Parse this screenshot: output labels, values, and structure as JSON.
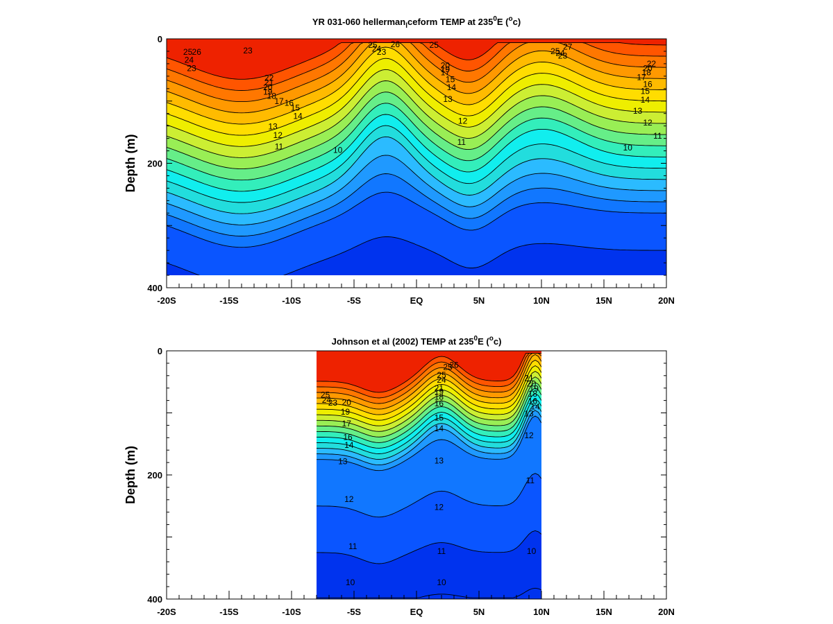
{
  "chart_data": [
    {
      "type": "heatmap",
      "subtype": "filled-contour-section",
      "title": "YR 031-060 hellerman_ceform TEMP at 235°E (°c)",
      "title_parts": {
        "pre": "YR 031-060 hellerman",
        "sub": "l",
        "mid": "ceform TEMP at 235",
        "sup1": "0",
        "post1": "E (",
        "sup2": "o",
        "post2": "c)"
      },
      "ylabel": "Depth (m)",
      "xlabel": "",
      "xlim": [
        -20,
        20
      ],
      "ylim": [
        400,
        0
      ],
      "y_inverted": true,
      "data_depth_max": 380,
      "data_lat_range": [
        -20,
        20
      ],
      "xticks": [
        -20,
        -15,
        -10,
        -5,
        0,
        5,
        10,
        15,
        20
      ],
      "xtick_labels": [
        "-20S",
        "-15S",
        "-10S",
        "-5S",
        "EQ",
        "5N",
        "10N",
        "15N",
        "20N"
      ],
      "yticks": [
        0,
        200,
        400
      ],
      "ytick_labels": [
        "0",
        "200",
        "400"
      ],
      "contour_levels": [
        10,
        11,
        12,
        13,
        14,
        15,
        16,
        17,
        18,
        19,
        20,
        21,
        22,
        23,
        24,
        25,
        26,
        27
      ],
      "contour_labels": [
        {
          "level": "23",
          "lat": -13.5,
          "depth": 20
        },
        {
          "level": "25",
          "lat": -18.3,
          "depth": 22
        },
        {
          "level": "26",
          "lat": -17.6,
          "depth": 22
        },
        {
          "level": "24",
          "lat": -18.2,
          "depth": 35
        },
        {
          "level": "23",
          "lat": -18.0,
          "depth": 48
        },
        {
          "level": "22",
          "lat": -11.8,
          "depth": 64
        },
        {
          "level": "21",
          "lat": -11.8,
          "depth": 71
        },
        {
          "level": "20",
          "lat": -11.9,
          "depth": 79
        },
        {
          "level": "19",
          "lat": -11.9,
          "depth": 86
        },
        {
          "level": "18",
          "lat": -11.6,
          "depth": 93
        },
        {
          "level": "17",
          "lat": -11.0,
          "depth": 101
        },
        {
          "level": "16",
          "lat": -10.2,
          "depth": 104
        },
        {
          "level": "15",
          "lat": -9.7,
          "depth": 112
        },
        {
          "level": "14",
          "lat": -9.5,
          "depth": 125
        },
        {
          "level": "13",
          "lat": -11.5,
          "depth": 142
        },
        {
          "level": "12",
          "lat": -11.1,
          "depth": 156
        },
        {
          "level": "11",
          "lat": -11.0,
          "depth": 174
        },
        {
          "level": "10",
          "lat": -6.3,
          "depth": 180
        },
        {
          "level": "25",
          "lat": -3.5,
          "depth": 11
        },
        {
          "level": "24",
          "lat": -3.2,
          "depth": 17
        },
        {
          "level": "23",
          "lat": -2.8,
          "depth": 22
        },
        {
          "level": "26",
          "lat": -1.7,
          "depth": 10
        },
        {
          "level": "25",
          "lat": 1.4,
          "depth": 11
        },
        {
          "level": "20",
          "lat": 2.3,
          "depth": 44
        },
        {
          "level": "19",
          "lat": 2.3,
          "depth": 50
        },
        {
          "level": "17",
          "lat": 2.3,
          "depth": 55
        },
        {
          "level": "15",
          "lat": 2.7,
          "depth": 66
        },
        {
          "level": "14",
          "lat": 2.8,
          "depth": 79
        },
        {
          "level": "13",
          "lat": 2.5,
          "depth": 98
        },
        {
          "level": "12",
          "lat": 3.7,
          "depth": 133
        },
        {
          "level": "11",
          "lat": 3.6,
          "depth": 167
        },
        {
          "level": "27",
          "lat": 12.1,
          "depth": 14
        },
        {
          "level": "25",
          "lat": 11.1,
          "depth": 21
        },
        {
          "level": "24",
          "lat": 11.5,
          "depth": 24
        },
        {
          "level": "23",
          "lat": 11.7,
          "depth": 28
        },
        {
          "level": "22",
          "lat": 18.8,
          "depth": 41
        },
        {
          "level": "20",
          "lat": 18.5,
          "depth": 48
        },
        {
          "level": "18",
          "lat": 18.4,
          "depth": 55
        },
        {
          "level": "17",
          "lat": 18.0,
          "depth": 63
        },
        {
          "level": "16",
          "lat": 18.5,
          "depth": 74
        },
        {
          "level": "15",
          "lat": 18.3,
          "depth": 85
        },
        {
          "level": "14",
          "lat": 18.3,
          "depth": 99
        },
        {
          "level": "13",
          "lat": 17.7,
          "depth": 117
        },
        {
          "level": "12",
          "lat": 18.5,
          "depth": 136
        },
        {
          "level": "11",
          "lat": 19.3,
          "depth": 157
        },
        {
          "level": "10",
          "lat": 16.9,
          "depth": 176
        }
      ]
    },
    {
      "type": "heatmap",
      "subtype": "filled-contour-section",
      "title": "Johnson et al (2002) TEMP at 235°E (°c)",
      "title_parts": {
        "pre": "Johnson et al (2002) TEMP at 235",
        "sup1": "0",
        "post1": "E (",
        "sup2": "o",
        "post2": "c)"
      },
      "ylabel": "Depth (m)",
      "xlabel": "",
      "xlim": [
        -20,
        20
      ],
      "ylim": [
        400,
        0
      ],
      "y_inverted": true,
      "data_depth_max": 400,
      "data_lat_range": [
        -8,
        10
      ],
      "xticks": [
        -20,
        -15,
        -10,
        -5,
        0,
        5,
        10,
        15,
        20
      ],
      "xtick_labels": [
        "-20S",
        "-15S",
        "-10S",
        "-5S",
        "EQ",
        "5N",
        "10N",
        "15N",
        "20N"
      ],
      "yticks": [
        0,
        200,
        400
      ],
      "ytick_labels": [
        "0",
        "200",
        "400"
      ],
      "contour_levels": [
        10,
        11,
        12,
        13,
        14,
        15,
        16,
        17,
        18,
        19,
        20,
        21,
        22,
        23,
        24,
        25,
        26,
        27
      ],
      "contour_labels": [
        {
          "level": "25",
          "lat": 2.0,
          "depth": 40
        },
        {
          "level": "24",
          "lat": 2.0,
          "depth": 48
        },
        {
          "level": "26",
          "lat": 3.0,
          "depth": 24
        },
        {
          "level": "25",
          "lat": 2.5,
          "depth": 27
        },
        {
          "level": "21",
          "lat": 1.8,
          "depth": 61
        },
        {
          "level": "19",
          "lat": 1.8,
          "depth": 67
        },
        {
          "level": "18",
          "lat": 1.8,
          "depth": 75
        },
        {
          "level": "16",
          "lat": 1.8,
          "depth": 86
        },
        {
          "level": "15",
          "lat": 1.8,
          "depth": 109
        },
        {
          "level": "14",
          "lat": 1.8,
          "depth": 126
        },
        {
          "level": "13",
          "lat": 1.8,
          "depth": 178
        },
        {
          "level": "12",
          "lat": 1.8,
          "depth": 253
        },
        {
          "level": "11",
          "lat": 2.0,
          "depth": 324
        },
        {
          "level": "10",
          "lat": 2.0,
          "depth": 374
        },
        {
          "level": "25",
          "lat": -7.3,
          "depth": 72
        },
        {
          "level": "24",
          "lat": -7.2,
          "depth": 80
        },
        {
          "level": "23",
          "lat": -6.7,
          "depth": 85
        },
        {
          "level": "20",
          "lat": -5.6,
          "depth": 84
        },
        {
          "level": "19",
          "lat": -5.7,
          "depth": 99
        },
        {
          "level": "17",
          "lat": -5.6,
          "depth": 118
        },
        {
          "level": "16",
          "lat": -5.5,
          "depth": 140
        },
        {
          "level": "14",
          "lat": -5.4,
          "depth": 153
        },
        {
          "level": "13",
          "lat": -5.9,
          "depth": 179
        },
        {
          "level": "12",
          "lat": -5.4,
          "depth": 240
        },
        {
          "level": "11",
          "lat": -5.1,
          "depth": 316
        },
        {
          "level": "10",
          "lat": -5.3,
          "depth": 374
        },
        {
          "level": "21",
          "lat": 9.0,
          "depth": 45
        },
        {
          "level": "20",
          "lat": 9.2,
          "depth": 54
        },
        {
          "level": "19",
          "lat": 9.4,
          "depth": 62
        },
        {
          "level": "18",
          "lat": 9.3,
          "depth": 70
        },
        {
          "level": "16",
          "lat": 9.3,
          "depth": 82
        },
        {
          "level": "14",
          "lat": 9.5,
          "depth": 91
        },
        {
          "level": "13",
          "lat": 9.0,
          "depth": 102
        },
        {
          "level": "12",
          "lat": 9.0,
          "depth": 137
        },
        {
          "level": "11",
          "lat": 9.1,
          "depth": 210
        },
        {
          "level": "10",
          "lat": 9.2,
          "depth": 324
        }
      ]
    }
  ]
}
